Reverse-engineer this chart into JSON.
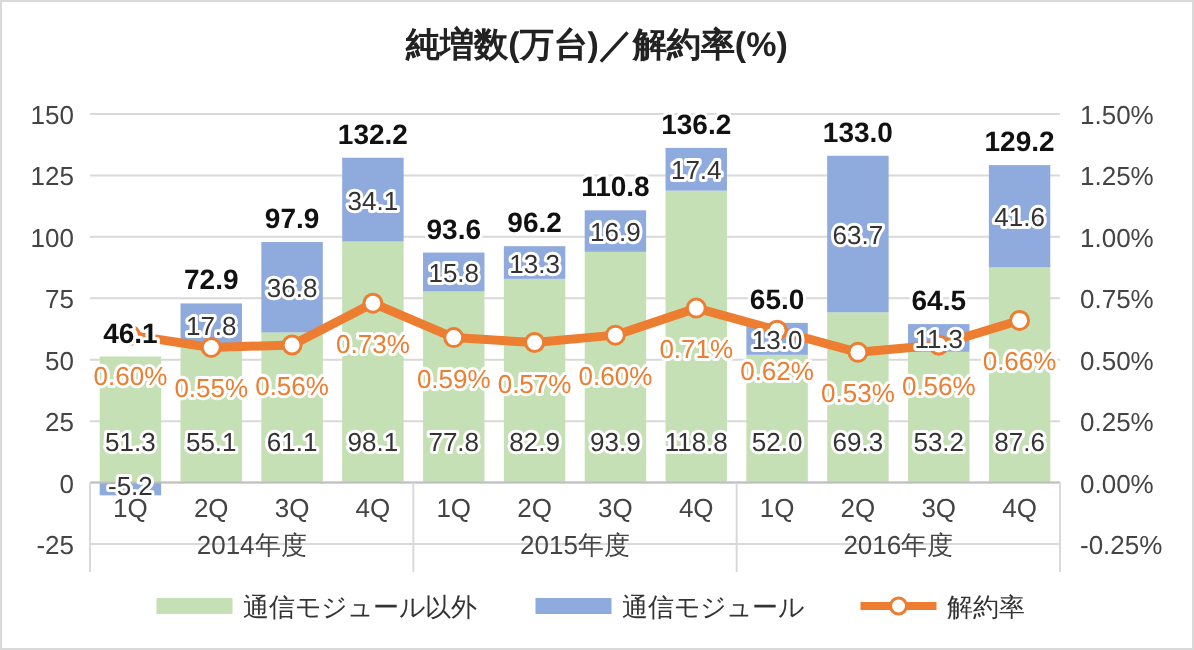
{
  "chart_data": {
    "type": "bar",
    "title": "純増数(万台)／解約率(%)",
    "categories": [
      "1Q",
      "2Q",
      "3Q",
      "4Q",
      "1Q",
      "2Q",
      "3Q",
      "4Q",
      "1Q",
      "2Q",
      "3Q",
      "4Q"
    ],
    "annotations": [
      "2014年度",
      "2015年度",
      "2016年度"
    ],
    "stacked": true,
    "series": [
      {
        "name": "通信モジュール以外",
        "color": "#c5e0b4",
        "values": [
          51.3,
          55.1,
          61.1,
          98.1,
          77.8,
          82.9,
          93.9,
          118.8,
          52.0,
          69.3,
          53.2,
          87.6
        ],
        "value_labels": [
          "51.3",
          "55.1",
          "61.1",
          "98.1",
          "77.8",
          "82.9",
          "93.9",
          "118.8",
          "52.0",
          "69.3",
          "53.2",
          "87.6"
        ]
      },
      {
        "name": "通信モジュール",
        "color": "#8faadc",
        "values": [
          -5.2,
          17.8,
          36.8,
          34.1,
          15.8,
          13.3,
          16.9,
          17.4,
          13.0,
          63.7,
          11.3,
          41.6
        ],
        "value_labels": [
          "-5.2",
          "17.8",
          "36.8",
          "34.1",
          "15.8",
          "13.3",
          "16.9",
          "17.4",
          "13.0",
          "63.7",
          "11.3",
          "41.6"
        ]
      },
      {
        "name": "解約率",
        "type": "line",
        "axis": "y2",
        "color": "#ed7d31",
        "values": [
          0.6,
          0.55,
          0.56,
          0.73,
          0.59,
          0.57,
          0.6,
          0.71,
          0.62,
          0.53,
          0.56,
          0.66
        ],
        "value_labels": [
          "0.60%",
          "0.55%",
          "0.56%",
          "0.73%",
          "0.59%",
          "0.57%",
          "0.60%",
          "0.71%",
          "0.62%",
          "0.53%",
          "0.56%",
          "0.66%"
        ]
      }
    ],
    "totals": [
      "46.1",
      "72.9",
      "97.9",
      "132.2",
      "93.6",
      "96.2",
      "110.8",
      "136.2",
      "65.0",
      "133.0",
      "64.5",
      "129.2"
    ],
    "ylim": [
      -25,
      150
    ],
    "yticks": [
      -25,
      0,
      25,
      50,
      75,
      100,
      125,
      150
    ],
    "y2lim": [
      -0.25,
      1.5
    ],
    "y2ticks": [
      {
        "value": -0.25,
        "label": "-0.25%"
      },
      {
        "value": 0,
        "label": "0.00%"
      },
      {
        "value": 0.25,
        "label": "0.25%"
      },
      {
        "value": 0.5,
        "label": "0.50%"
      },
      {
        "value": 0.75,
        "label": "0.75%"
      },
      {
        "value": 1.0,
        "label": "1.00%"
      },
      {
        "value": 1.25,
        "label": "1.25%"
      },
      {
        "value": 1.5,
        "label": "1.50%"
      }
    ],
    "grid": "y",
    "legend": "bottom",
    "marker": "circle"
  }
}
